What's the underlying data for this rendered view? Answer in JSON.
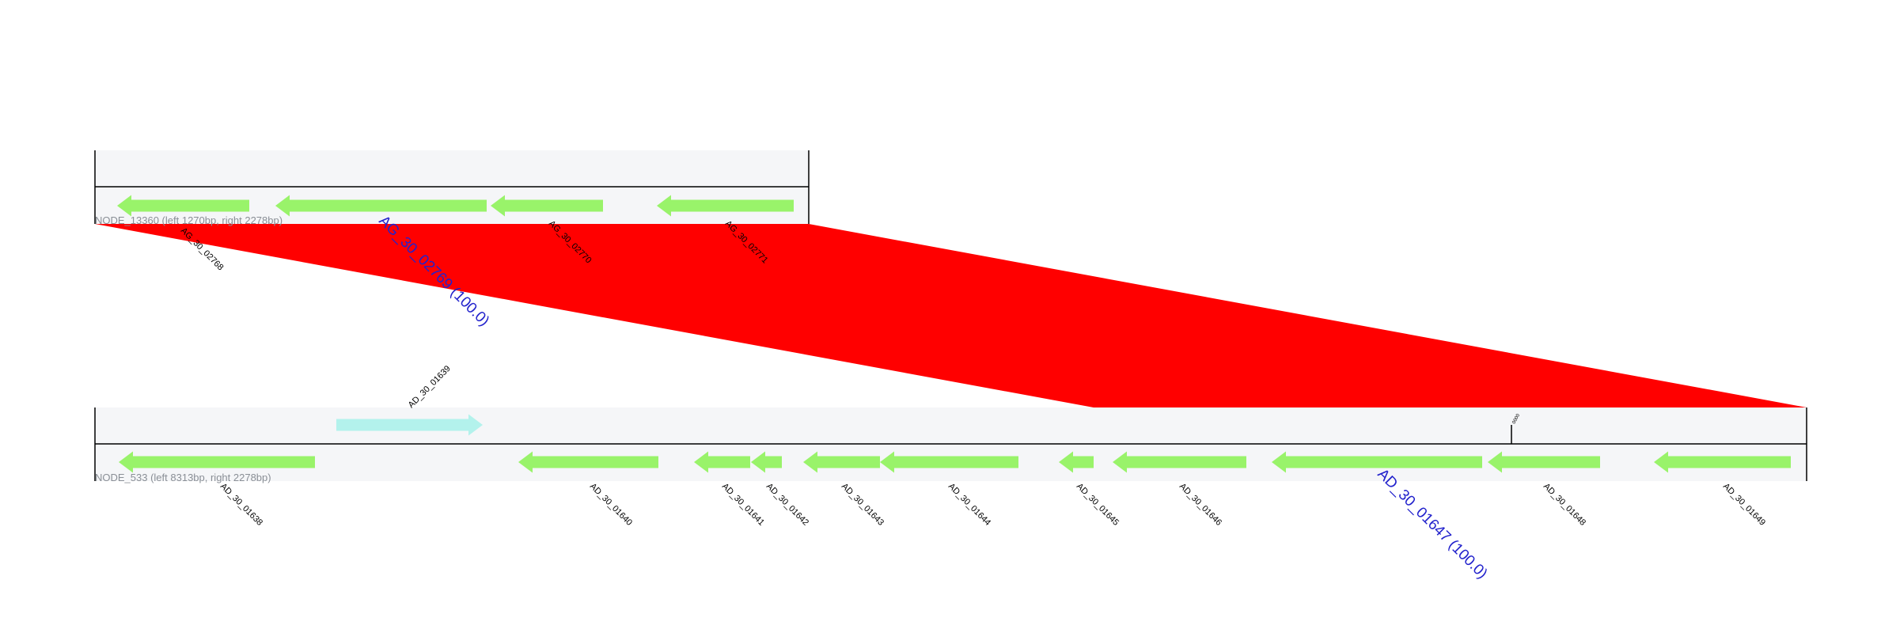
{
  "colors": {
    "gene_reverse": "#99f36a",
    "gene_forward": "#b3f2ec",
    "alignment": "#ff0000",
    "track_bg": "#f5f6f8",
    "big_label": "#2222cc",
    "node_label": "#8a8f96"
  },
  "tracks": [
    {
      "id": "top",
      "node_label": "NODE_13360 (left 1270bp, right 2278bp)",
      "genes": [
        {
          "label": "AG_30_02768",
          "strand": "-",
          "highlight": false
        },
        {
          "label": "AG_30_02769 (100.0)",
          "strand": "-",
          "highlight": true
        },
        {
          "label": "AG_30_02770",
          "strand": "-",
          "highlight": false
        },
        {
          "label": "AG_30_02771",
          "strand": "-",
          "highlight": false
        }
      ],
      "markers": []
    },
    {
      "id": "bottom",
      "node_label": "NODE_533 (left 8313bp, right 2278bp)",
      "genes": [
        {
          "label": "AD_30_01638",
          "strand": "-",
          "highlight": false
        },
        {
          "label": "AD_30_01639",
          "strand": "+",
          "highlight": false
        },
        {
          "label": "AD_30_01640",
          "strand": "-",
          "highlight": false
        },
        {
          "label": "AD_30_01641",
          "strand": "-",
          "highlight": false
        },
        {
          "label": "AD_30_01642",
          "strand": "-",
          "highlight": false
        },
        {
          "label": "AD_30_01643",
          "strand": "-",
          "highlight": false
        },
        {
          "label": "AD_30_01644",
          "strand": "-",
          "highlight": false
        },
        {
          "label": "AD_30_01645",
          "strand": "-",
          "highlight": false
        },
        {
          "label": "AD_30_01646",
          "strand": "-",
          "highlight": false
        },
        {
          "label": "AD_30_01647 (100.0)",
          "strand": "-",
          "highlight": true
        },
        {
          "label": "AD_30_01648",
          "strand": "-",
          "highlight": false
        },
        {
          "label": "AD_30_01649",
          "strand": "-",
          "highlight": false
        }
      ],
      "markers": [
        {
          "label": "0000"
        }
      ]
    }
  ]
}
